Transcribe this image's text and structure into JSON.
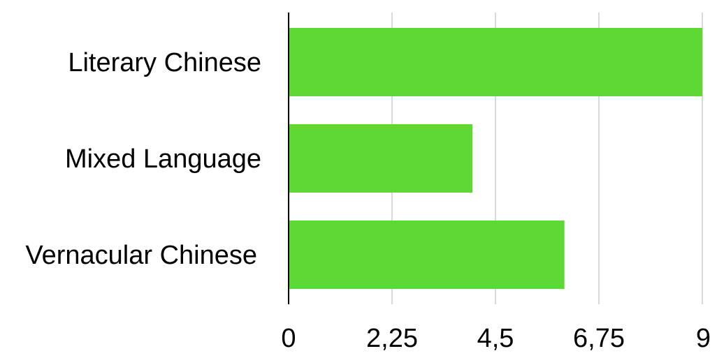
{
  "chart_data": {
    "type": "bar",
    "orientation": "horizontal",
    "categories": [
      "Literary Chinese",
      "Mixed Language",
      "Vernacular Chinese"
    ],
    "values": [
      9,
      4,
      6
    ],
    "xlim": [
      0,
      9
    ],
    "xticks": [
      "0",
      "2,25",
      "4,5",
      "6,75",
      "9"
    ],
    "title": "",
    "xlabel": "",
    "ylabel": "",
    "grid": true,
    "legend": "none",
    "bar_color": "#5ed834"
  }
}
